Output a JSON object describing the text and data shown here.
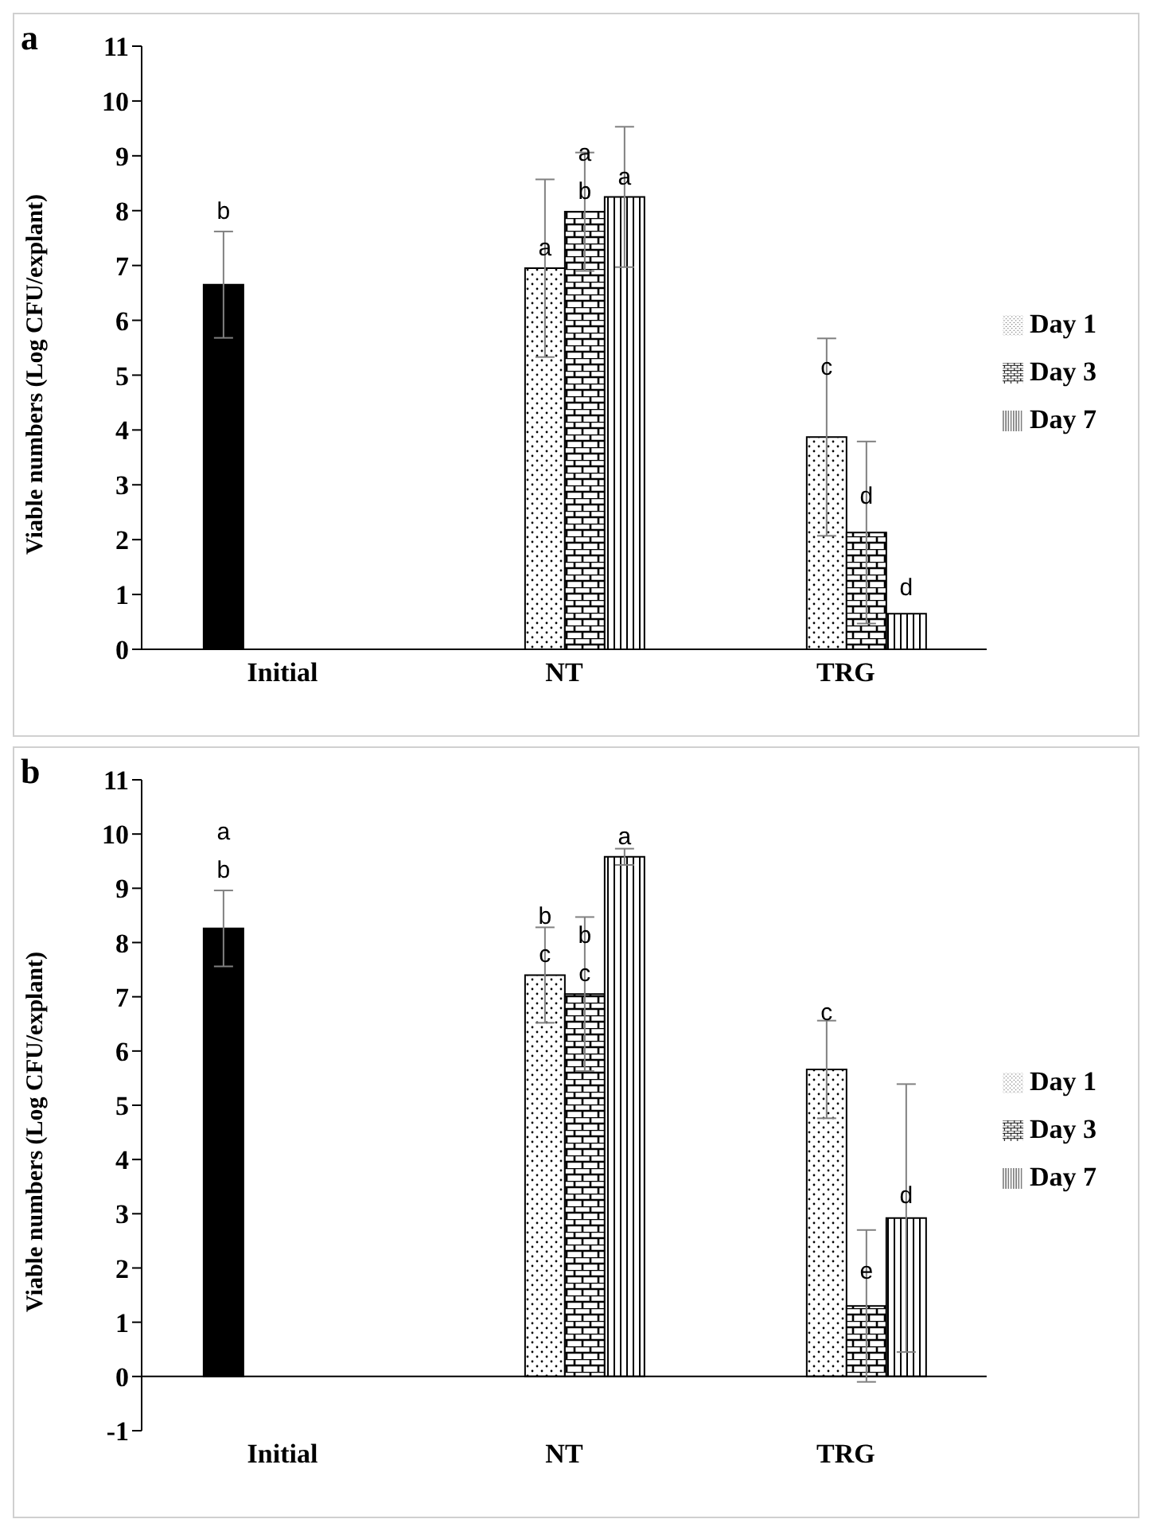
{
  "chart_data": [
    {
      "type": "bar",
      "annotations": [
        "a"
      ],
      "ylabel": "Viable numbers (Log CFU/explant)",
      "categories": [
        "Initial",
        "NT",
        "TRG"
      ],
      "series": [
        {
          "color": "#000000",
          "values": [
            6.65,
            null,
            null
          ],
          "errors": [
            0.97,
            null,
            null
          ],
          "value_labels": [
            "b",
            null,
            null
          ]
        },
        {
          "name": "Day 1",
          "color": "#000000",
          "values": [
            null,
            6.95,
            3.87
          ],
          "errors": [
            null,
            1.62,
            1.8
          ],
          "value_labels": [
            null,
            "a",
            "c"
          ]
        },
        {
          "name": "Day 3",
          "color": "#000000",
          "values": [
            null,
            7.98,
            2.13
          ],
          "errors": [
            null,
            1.08,
            1.66
          ],
          "value_labels": [
            null,
            "a\nb",
            "d"
          ]
        },
        {
          "name": "Day 7",
          "color": "#000000",
          "values": [
            null,
            8.25,
            0.65
          ],
          "errors": [
            null,
            1.28,
            null
          ],
          "value_labels": [
            null,
            "a",
            "d"
          ]
        }
      ],
      "ylim": [
        0,
        11
      ],
      "yticks": [
        0,
        1,
        2,
        3,
        4,
        5,
        6,
        7,
        8,
        9,
        10,
        11
      ],
      "legend": "right"
    },
    {
      "type": "bar",
      "annotations": [
        "b"
      ],
      "ylabel": "Viable numbers (Log CFU/explant)",
      "categories": [
        "Initial",
        "NT",
        "TRG"
      ],
      "series": [
        {
          "color": "#000000",
          "values": [
            8.26,
            null,
            null
          ],
          "errors": [
            0.7,
            null,
            null
          ],
          "value_labels": [
            "a\nb",
            null,
            null
          ]
        },
        {
          "name": "Day 1",
          "color": "#000000",
          "values": [
            null,
            7.4,
            5.66
          ],
          "errors": [
            null,
            0.88,
            0.9
          ],
          "value_labels": [
            null,
            "b\nc",
            "c"
          ]
        },
        {
          "name": "Day 3",
          "color": "#000000",
          "values": [
            null,
            7.05,
            1.3
          ],
          "errors": [
            null,
            1.42,
            1.4
          ],
          "value_labels": [
            null,
            "b\nc",
            "e"
          ]
        },
        {
          "name": "Day 7",
          "color": "#000000",
          "values": [
            null,
            9.58,
            2.92
          ],
          "errors": [
            null,
            0.15,
            2.47
          ],
          "value_labels": [
            null,
            "a",
            "d"
          ]
        }
      ],
      "ylim": [
        -1,
        11
      ],
      "yticks": [
        -1,
        0,
        1,
        2,
        3,
        4,
        5,
        6,
        7,
        8,
        9,
        10,
        11
      ],
      "legend": "right"
    }
  ]
}
